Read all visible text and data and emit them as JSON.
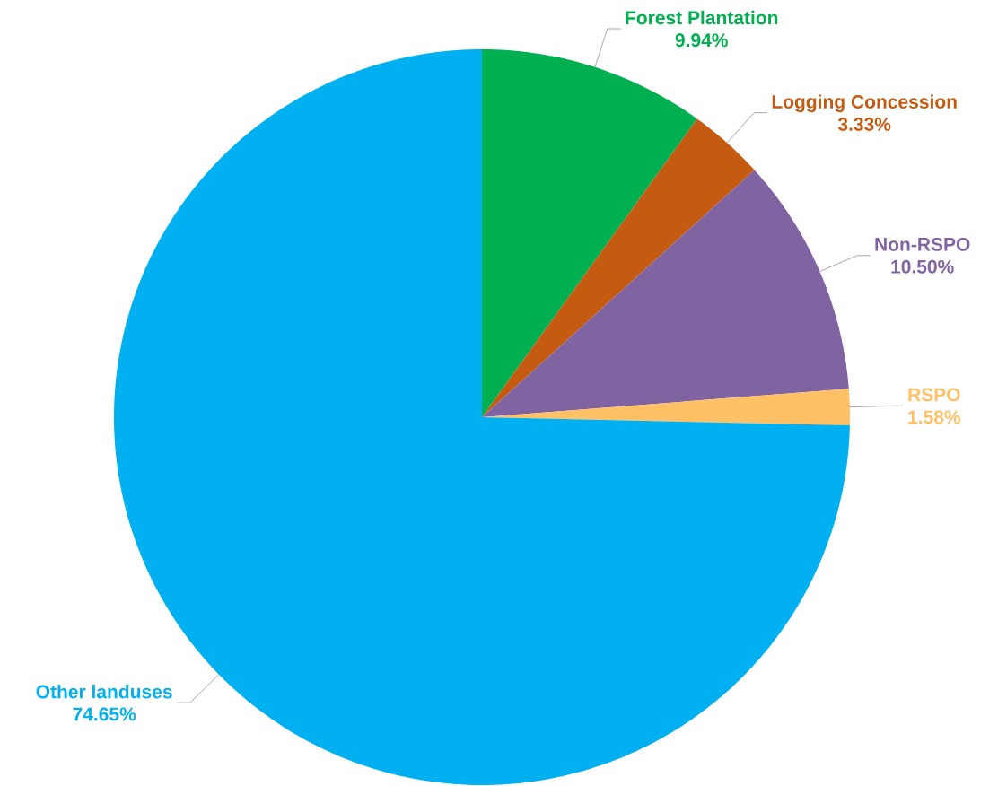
{
  "chart_data": {
    "type": "pie",
    "categories": [
      "Forest Plantation",
      "Logging Concession",
      "Non-RSPO",
      "RSPO",
      "Other landuses"
    ],
    "values": [
      9.94,
      3.33,
      10.5,
      1.58,
      74.65
    ],
    "colors": [
      "#00b050",
      "#c55a11",
      "#8064a2",
      "#ffc066",
      "#00b0f0"
    ],
    "value_labels": [
      "9.94%",
      "3.33%",
      "10.50%",
      "1.58%",
      "74.65%"
    ]
  }
}
